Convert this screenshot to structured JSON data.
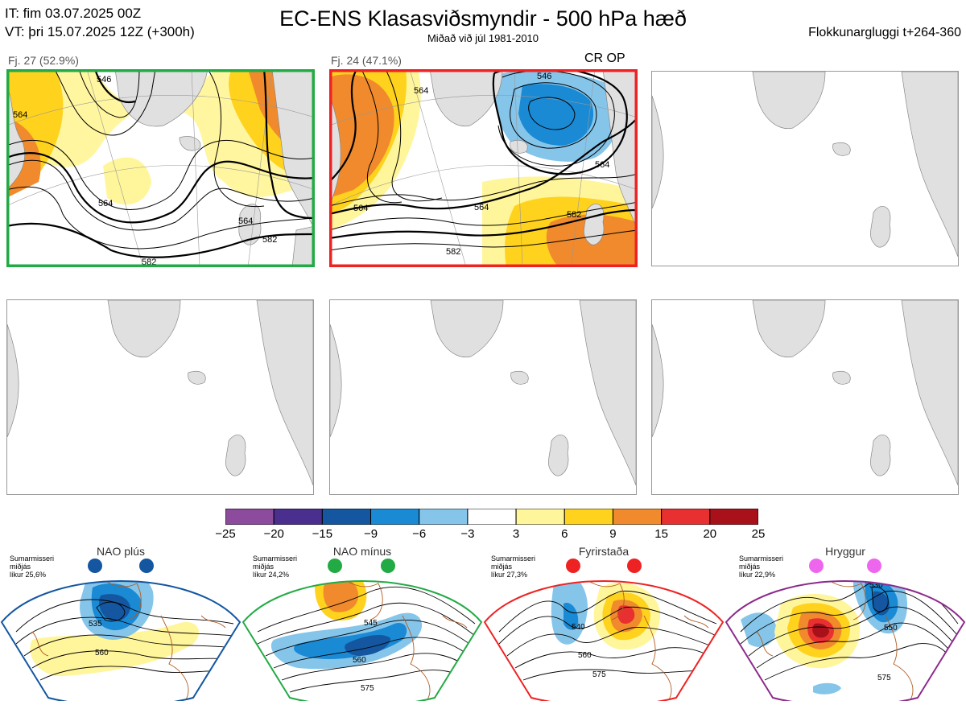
{
  "header": {
    "it_line": "IT: fim 03.07.2025 00Z",
    "vt_line": "VT: þri 15.07.2025 12Z  (+300h)",
    "title": "EC-ENS Klasasviðsmyndir - 500 hPa hæð",
    "subtitle": "Miðað við júl 1981-2010",
    "window": "Flokkunargluggi t+264-360"
  },
  "clusters": [
    {
      "label": "Fj. 27 (52.9%)",
      "border_color": "#22aa44",
      "contours": [
        "564",
        "546",
        "564",
        "564",
        "582",
        "582"
      ]
    },
    {
      "label": "Fj. 24 (47.1%)",
      "border_color": "#ee2222",
      "extra": "CR OP",
      "contours": [
        "564",
        "546",
        "564",
        "582",
        "582",
        "564",
        "564"
      ]
    }
  ],
  "colorbar": {
    "ticks": [
      "−25",
      "−20",
      "−15",
      "−9",
      "−6",
      "−3",
      "3",
      "6",
      "9",
      "15",
      "20",
      "25"
    ],
    "colors": [
      "#8c4b9c",
      "#4a2f8f",
      "#1456a0",
      "#1a8ad4",
      "#86c5ea",
      "#ffffff",
      "#fff59a",
      "#ffd21e",
      "#f08a2c",
      "#e83030",
      "#a8101a"
    ]
  },
  "regimes": [
    {
      "title": "NAO plús",
      "note": [
        "Sumarmisseri",
        "miðjás",
        "líkur 25,6%"
      ],
      "color": "#1456a0",
      "contours": [
        "535",
        "560"
      ]
    },
    {
      "title": "NAO mínus",
      "note": [
        "Sumarmisseri",
        "miðjás",
        "líkur 24,2%"
      ],
      "color": "#22aa44",
      "contours": [
        "545",
        "560",
        "575"
      ]
    },
    {
      "title": "Fyrirstaða",
      "note": [
        "Sumarmisseri",
        "miðjás",
        "líkur 27,3%"
      ],
      "color": "#ee2222",
      "contours": [
        "540",
        "560",
        "575"
      ]
    },
    {
      "title": "Hryggur",
      "note": [
        "Sumarmisseri",
        "miðjás",
        "líkur 22,9%"
      ],
      "color": "#ee66ee",
      "contours": [
        "530",
        "550",
        "575"
      ]
    }
  ],
  "chart_data": {
    "type": "heatmap",
    "title": "EC-ENS Klasasviðsmyndir - 500 hPa hæð",
    "colorbar_ticks": [
      -25,
      -20,
      -15,
      -9,
      -6,
      -3,
      3,
      6,
      9,
      15,
      20,
      25
    ],
    "clusters": [
      {
        "label": "Fj. 27 (52.9%)",
        "contour_labels": [
          564,
          546,
          564,
          564,
          582,
          582
        ]
      },
      {
        "label": "Fj. 24 (47.1%)",
        "contour_labels": [
          564,
          546,
          564,
          582,
          582,
          564,
          564
        ]
      }
    ],
    "regimes": [
      {
        "name": "NAO plús",
        "likelihood_percent": 25.6
      },
      {
        "name": "NAO mínus",
        "likelihood_percent": 24.2
      },
      {
        "name": "Fyrirstaða",
        "likelihood_percent": 27.3
      },
      {
        "name": "Hryggur",
        "likelihood_percent": 22.9
      }
    ]
  }
}
